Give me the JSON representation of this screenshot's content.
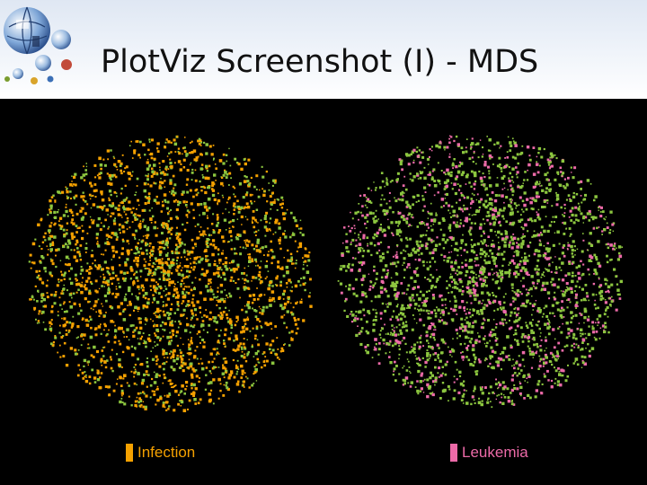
{
  "slide": {
    "title": "PlotViz Screenshot (I) - MDS",
    "logo_icon": "globe-network-logo-icon"
  },
  "chart_data": {
    "type": "scatter",
    "title": "",
    "panels": [
      {
        "name": "infection-cluster",
        "legend": "Infection",
        "legend_color": "#f5a100",
        "colors": {
          "primary": "#f5a100",
          "secondary": "#8cc63f"
        },
        "mix": {
          "primary": 0.62,
          "secondary": 0.38
        }
      },
      {
        "name": "leukemia-cluster",
        "legend": "Leukemia",
        "legend_color": "#ec6aa8",
        "colors": {
          "primary": "#8cc63f",
          "secondary": "#ec6aa8"
        },
        "mix": {
          "primary": 0.72,
          "secondary": 0.28
        }
      }
    ],
    "legend_position": "bottom",
    "grid": false,
    "axes": "none",
    "background": "#000000"
  }
}
